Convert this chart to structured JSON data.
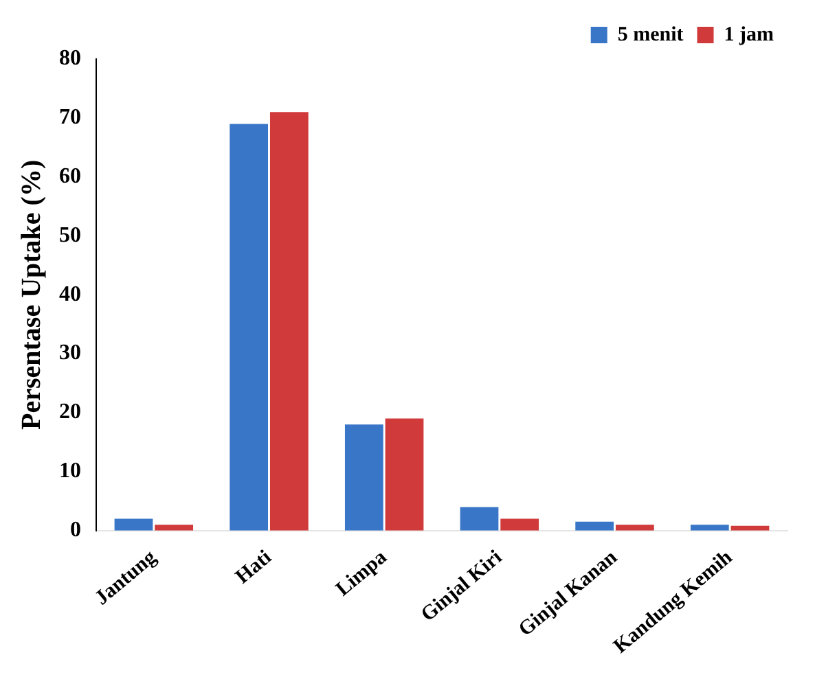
{
  "chart_data": {
    "type": "bar",
    "ylabel": "Persentase Uptake (%)",
    "categories": [
      "Jantung",
      "Hati",
      "Limpa",
      "Ginjal Kiri",
      "Ginjal Kanan",
      "Kandung Kemih"
    ],
    "series": [
      {
        "name": "5 menit",
        "color": "#3a76c8",
        "values": [
          2,
          69,
          18,
          4,
          1.5,
          1
        ]
      },
      {
        "name": "1 jam",
        "color": "#d03a3a",
        "values": [
          1,
          71,
          19,
          2,
          1,
          0.8
        ]
      }
    ],
    "ylim": [
      0,
      80
    ],
    "yticks": [
      0,
      10,
      20,
      30,
      40,
      50,
      60,
      70,
      80
    ],
    "grid": false,
    "legend": "top right"
  }
}
